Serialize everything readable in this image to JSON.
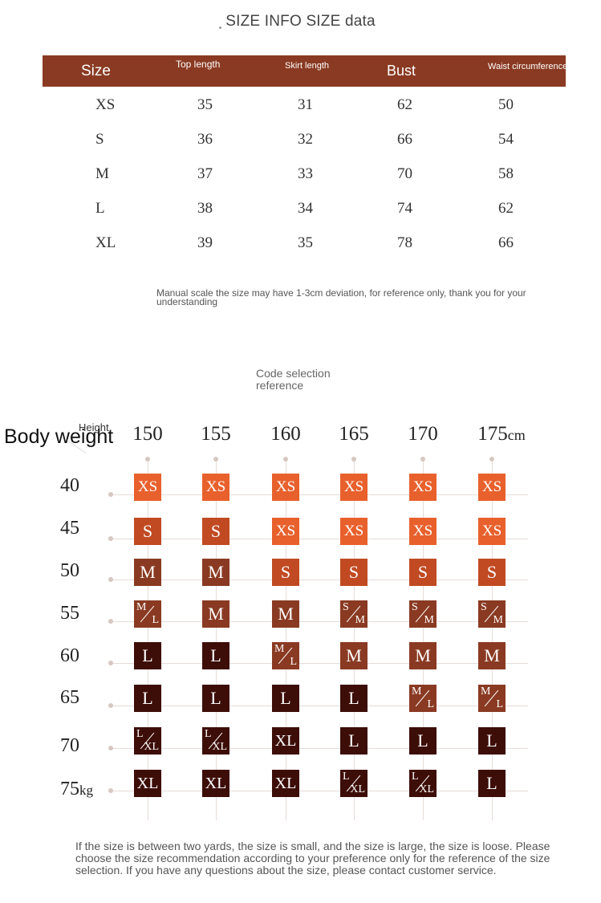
{
  "title": "SIZE INFO SIZE data",
  "size_table": {
    "headers": [
      "Size",
      "Top length",
      "Skirt length",
      "Bust",
      "Waist circumference"
    ],
    "rows": [
      [
        "XS",
        "35",
        "31",
        "62",
        "50"
      ],
      [
        "S",
        "36",
        "32",
        "66",
        "54"
      ],
      [
        "M",
        "37",
        "33",
        "70",
        "58"
      ],
      [
        "L",
        "38",
        "34",
        "74",
        "62"
      ],
      [
        "XL",
        "39",
        "35",
        "78",
        "66"
      ]
    ]
  },
  "note": "Manual scale the size may have 1-3cm deviation, for reference only, thank you for your understanding",
  "code_reference": "Code selection reference",
  "grid": {
    "body_weight_label": "Body weight",
    "height_label": "Height",
    "heights": [
      "150",
      "155",
      "160",
      "165",
      "170",
      "175"
    ],
    "height_unit": "cm",
    "weights": [
      "40",
      "45",
      "50",
      "55",
      "60",
      "65",
      "70",
      "75"
    ],
    "weight_unit": "kg",
    "colors": {
      "XS": "#e8602c",
      "S": "#c14a23",
      "M": "#8a3a22",
      "M/L": "#8a3a22",
      "S/M": "#8a3a22",
      "L": "#3d0d07",
      "L/XL": "#3d0d07",
      "XL": "#3d0d07"
    },
    "cells": [
      [
        "XS",
        "XS",
        "XS",
        "XS",
        "XS",
        "XS"
      ],
      [
        "S",
        "S",
        "XS",
        "XS",
        "XS",
        "XS"
      ],
      [
        "M",
        "M",
        "S",
        "S",
        "S",
        "S"
      ],
      [
        "M/L",
        "M",
        "M",
        "S/M",
        "S/M",
        "S/M"
      ],
      [
        "L",
        "L",
        "M/L",
        "M",
        "M",
        "M"
      ],
      [
        "L",
        "L",
        "L",
        "L",
        "M/L",
        "M/L"
      ],
      [
        "L/XL",
        "L/XL",
        "XL",
        "L",
        "L",
        "L"
      ],
      [
        "XL",
        "XL",
        "XL",
        "L/XL",
        "L/XL",
        "L"
      ]
    ]
  },
  "footer_note": "If the size is between two yards, the size is small, and the size is large, the size is loose. Please choose the size recommendation according to your preference only for the reference of the size selection. If you have any questions about the size, please contact customer service."
}
